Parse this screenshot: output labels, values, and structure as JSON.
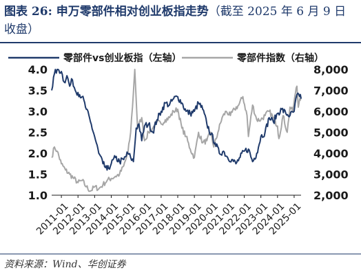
{
  "header": {
    "title_main": "图表 26:  申万零部件相对创业板指走势",
    "title_paren": "（截至 2025 年 6 月 9 日收盘）"
  },
  "footer": {
    "source": "资料来源：Wind、华创证券"
  },
  "colors": {
    "title": "#1f3a6b",
    "ratio_line": "#1f3a6b",
    "index_line": "#a6a6a6",
    "axis": "#1a1a1a"
  },
  "chart_data": {
    "type": "line",
    "title": "",
    "legend_position": "top",
    "grid": false,
    "x_ticks": [
      "2011-01",
      "2012-01",
      "2013-01",
      "2014-01",
      "2015-01",
      "2016-01",
      "2017-01",
      "2018-01",
      "2019-01",
      "2020-01",
      "2021-01",
      "2022-01",
      "2023-01",
      "2024-01",
      "2025-01"
    ],
    "x_range": [
      "2010-06",
      "2025-06"
    ],
    "y_left": {
      "ticks": [
        "1.0",
        "1.5",
        "2.0",
        "2.5",
        "3.0",
        "3.5",
        "4.0"
      ],
      "range": [
        1.0,
        4.0
      ]
    },
    "y_right": {
      "ticks": [
        "2,000",
        "3,000",
        "4,000",
        "5,000",
        "6,000",
        "7,000",
        "8,000"
      ],
      "range": [
        2000,
        8000
      ]
    },
    "series": [
      {
        "name": "零部件vs创业板指（左轴）",
        "axis": "left",
        "points": [
          [
            "2010-06",
            3.5
          ],
          [
            "2010-08",
            3.9
          ],
          [
            "2010-10",
            4.0
          ],
          [
            "2011-01",
            3.95
          ],
          [
            "2011-03",
            3.7
          ],
          [
            "2011-05",
            3.85
          ],
          [
            "2011-07",
            3.6
          ],
          [
            "2011-09",
            3.75
          ],
          [
            "2011-11",
            3.5
          ],
          [
            "2012-01",
            3.45
          ],
          [
            "2012-04",
            3.35
          ],
          [
            "2012-07",
            3.05
          ],
          [
            "2012-10",
            2.75
          ],
          [
            "2013-01",
            2.4
          ],
          [
            "2013-04",
            2.0
          ],
          [
            "2013-07",
            1.75
          ],
          [
            "2013-10",
            1.6
          ],
          [
            "2014-01",
            1.75
          ],
          [
            "2014-04",
            1.9
          ],
          [
            "2014-07",
            1.8
          ],
          [
            "2014-10",
            1.85
          ],
          [
            "2015-01",
            2.0
          ],
          [
            "2015-03",
            1.9
          ],
          [
            "2015-05",
            1.8
          ],
          [
            "2015-07",
            2.6
          ],
          [
            "2015-09",
            2.7
          ],
          [
            "2015-11",
            2.3
          ],
          [
            "2016-01",
            2.65
          ],
          [
            "2016-04",
            2.7
          ],
          [
            "2016-07",
            2.5
          ],
          [
            "2016-10",
            2.8
          ],
          [
            "2017-01",
            3.0
          ],
          [
            "2017-04",
            3.2
          ],
          [
            "2017-07",
            3.15
          ],
          [
            "2017-10",
            3.3
          ],
          [
            "2018-01",
            3.35
          ],
          [
            "2018-04",
            3.2
          ],
          [
            "2018-07",
            3.0
          ],
          [
            "2018-10",
            2.95
          ],
          [
            "2019-01",
            3.0
          ],
          [
            "2019-04",
            3.2
          ],
          [
            "2019-07",
            3.05
          ],
          [
            "2019-10",
            2.7
          ],
          [
            "2020-01",
            2.45
          ],
          [
            "2020-04",
            2.25
          ],
          [
            "2020-07",
            2.0
          ],
          [
            "2020-10",
            2.05
          ],
          [
            "2021-01",
            1.9
          ],
          [
            "2021-04",
            1.85
          ],
          [
            "2021-07",
            1.75
          ],
          [
            "2021-10",
            1.9
          ],
          [
            "2022-01",
            2.05
          ],
          [
            "2022-04",
            2.1
          ],
          [
            "2022-07",
            1.8
          ],
          [
            "2022-10",
            2.0
          ],
          [
            "2023-01",
            2.4
          ],
          [
            "2023-04",
            2.5
          ],
          [
            "2023-07",
            2.85
          ],
          [
            "2023-10",
            2.75
          ],
          [
            "2024-01",
            2.95
          ],
          [
            "2024-04",
            3.05
          ],
          [
            "2024-07",
            2.95
          ],
          [
            "2024-10",
            2.9
          ],
          [
            "2025-01",
            3.0
          ],
          [
            "2025-03",
            3.4
          ],
          [
            "2025-05",
            3.35
          ],
          [
            "2025-06",
            3.3
          ]
        ]
      },
      {
        "name": "零部件指数（右轴）",
        "axis": "right",
        "points": [
          [
            "2010-06",
            3800
          ],
          [
            "2010-08",
            4300
          ],
          [
            "2010-10",
            4100
          ],
          [
            "2011-01",
            3500
          ],
          [
            "2011-04",
            3200
          ],
          [
            "2011-07",
            3000
          ],
          [
            "2011-10",
            2800
          ],
          [
            "2012-01",
            2600
          ],
          [
            "2012-04",
            2700
          ],
          [
            "2012-07",
            2400
          ],
          [
            "2012-10",
            2200
          ],
          [
            "2013-01",
            2400
          ],
          [
            "2013-04",
            2300
          ],
          [
            "2013-07",
            2500
          ],
          [
            "2013-10",
            2700
          ],
          [
            "2014-01",
            2800
          ],
          [
            "2014-04",
            2900
          ],
          [
            "2014-07",
            3000
          ],
          [
            "2014-10",
            3400
          ],
          [
            "2015-01",
            4000
          ],
          [
            "2015-03",
            5000
          ],
          [
            "2015-05",
            6900
          ],
          [
            "2015-06",
            8000
          ],
          [
            "2015-08",
            5200
          ],
          [
            "2015-11",
            5700
          ],
          [
            "2016-01",
            4600
          ],
          [
            "2016-04",
            5000
          ],
          [
            "2016-07",
            5200
          ],
          [
            "2016-10",
            5500
          ],
          [
            "2017-01",
            5400
          ],
          [
            "2017-04",
            5600
          ],
          [
            "2017-07",
            5700
          ],
          [
            "2017-10",
            6000
          ],
          [
            "2018-01",
            6100
          ],
          [
            "2018-04",
            5200
          ],
          [
            "2018-07",
            4800
          ],
          [
            "2018-10",
            4200
          ],
          [
            "2019-01",
            3800
          ],
          [
            "2019-04",
            5000
          ],
          [
            "2019-07",
            4500
          ],
          [
            "2019-10",
            4600
          ],
          [
            "2020-01",
            5000
          ],
          [
            "2020-03",
            4300
          ],
          [
            "2020-06",
            5000
          ],
          [
            "2020-09",
            5700
          ],
          [
            "2020-12",
            6000
          ],
          [
            "2021-03",
            5800
          ],
          [
            "2021-06",
            6100
          ],
          [
            "2021-09",
            6300
          ],
          [
            "2021-12",
            6700
          ],
          [
            "2022-03",
            5800
          ],
          [
            "2022-04",
            4800
          ],
          [
            "2022-07",
            6300
          ],
          [
            "2022-10",
            5600
          ],
          [
            "2023-01",
            5600
          ],
          [
            "2023-04",
            5800
          ],
          [
            "2023-07",
            6000
          ],
          [
            "2023-10",
            5700
          ],
          [
            "2024-01",
            5300
          ],
          [
            "2024-02",
            4700
          ],
          [
            "2024-05",
            5800
          ],
          [
            "2024-08",
            5000
          ],
          [
            "2024-10",
            6200
          ],
          [
            "2024-12",
            6000
          ],
          [
            "2025-02",
            6900
          ],
          [
            "2025-03",
            7200
          ],
          [
            "2025-04",
            6200
          ],
          [
            "2025-05",
            6600
          ],
          [
            "2025-06",
            6700
          ]
        ]
      }
    ]
  }
}
